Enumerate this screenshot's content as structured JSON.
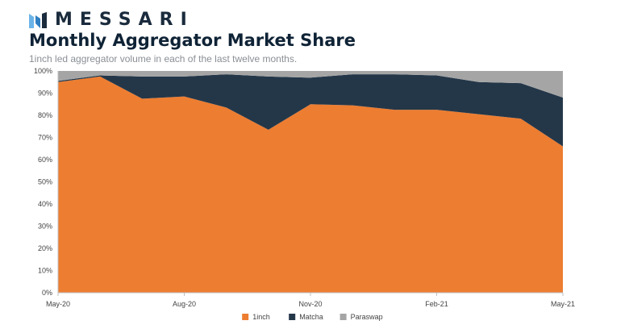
{
  "brand": {
    "name": "MESSARI",
    "icon": "messari-logo-icon"
  },
  "chart_data": {
    "type": "area",
    "stacked": true,
    "title": "Monthly Aggregator Market Share",
    "subtitle": "1inch led aggregator volume in each of the last twelve months.",
    "x": [
      "May-20",
      "Jun-20",
      "Jul-20",
      "Aug-20",
      "Sep-20",
      "Oct-20",
      "Nov-20",
      "Dec-20",
      "Jan-21",
      "Feb-21",
      "Mar-21",
      "Apr-21",
      "May-21"
    ],
    "x_tick_labels": [
      "May-20",
      "Aug-20",
      "Nov-20",
      "Feb-21",
      "May-21"
    ],
    "y_tick_labels": [
      "0%",
      "10%",
      "20%",
      "30%",
      "40%",
      "50%",
      "60%",
      "70%",
      "80%",
      "90%",
      "100%"
    ],
    "ylim": [
      0,
      100
    ],
    "series": [
      {
        "name": "1inch",
        "color": "#ed7d31",
        "values": [
          95,
          97.5,
          87.5,
          88.5,
          83.5,
          73.5,
          85,
          84.5,
          82.5,
          82.5,
          80.5,
          78.5,
          66
        ]
      },
      {
        "name": "Matcha",
        "color": "#243749",
        "values": [
          0.5,
          0.5,
          10,
          9,
          15,
          24,
          12,
          14,
          16,
          15.5,
          14.5,
          16,
          22
        ]
      },
      {
        "name": "Paraswap",
        "color": "#a5a5a5",
        "values": [
          4.5,
          2,
          2.5,
          2.5,
          1.5,
          2.5,
          3,
          1.5,
          1.5,
          2,
          5,
          5.5,
          12
        ]
      }
    ],
    "legend_position": "bottom",
    "grid": false
  }
}
